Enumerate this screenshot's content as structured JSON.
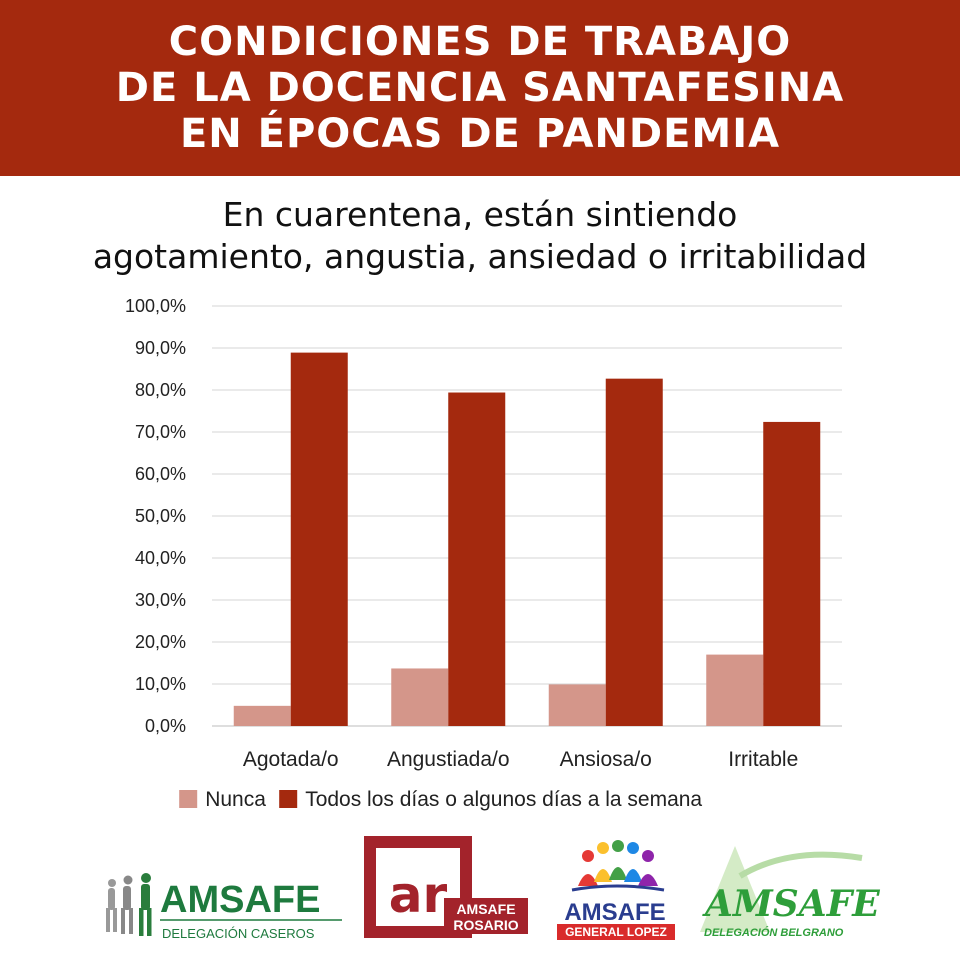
{
  "header": {
    "title_lines": [
      "CONDICIONES DE TRABAJO",
      "DE LA DOCENCIA SANTAFESINA",
      "EN ÉPOCAS DE PANDEMIA"
    ],
    "background_color": "#a4290e"
  },
  "chart_data": {
    "type": "bar",
    "title": "En cuarentena, están sintiendo agotamiento, angustia, ansiedad o irritabilidad",
    "title_lines": [
      "En cuarentena, están sintiendo",
      "agotamiento, angustia, ansiedad o irritabilidad"
    ],
    "categories": [
      "Agotada/o",
      "Angustiada/o",
      "Ansiosa/o",
      "Irritable"
    ],
    "series": [
      {
        "name": "Nunca",
        "values": [
          4.8,
          13.7,
          9.9,
          17.0
        ],
        "color": "#d4968a"
      },
      {
        "name": "Todos los días o algunos días a la semana",
        "values": [
          88.9,
          79.4,
          82.7,
          72.4
        ],
        "color": "#a4290e"
      }
    ],
    "y_ticks": [
      "0,0%",
      "10,0%",
      "20,0%",
      "30,0%",
      "40,0%",
      "50,0%",
      "60,0%",
      "70,0%",
      "80,0%",
      "90,0%",
      "100,0%"
    ],
    "ylim": [
      0,
      100
    ],
    "grid": true,
    "legend_position": "bottom"
  },
  "logos": [
    {
      "name": "AMSAFE",
      "subtitle": "DELEGACIÓN CASEROS",
      "color": "#1e7a3e"
    },
    {
      "badge": "ar",
      "name": "AMSAFE",
      "subtitle": "ROSARIO",
      "color": "#a3232b"
    },
    {
      "name": "AMSAFE",
      "subtitle": "GENERAL LOPEZ",
      "color": "#2a3d8f",
      "accent": "#d92b2b"
    },
    {
      "name": "AMSAFE",
      "subtitle": "DELEGACIÓN BELGRANO",
      "color": "#2e9e3a"
    }
  ]
}
